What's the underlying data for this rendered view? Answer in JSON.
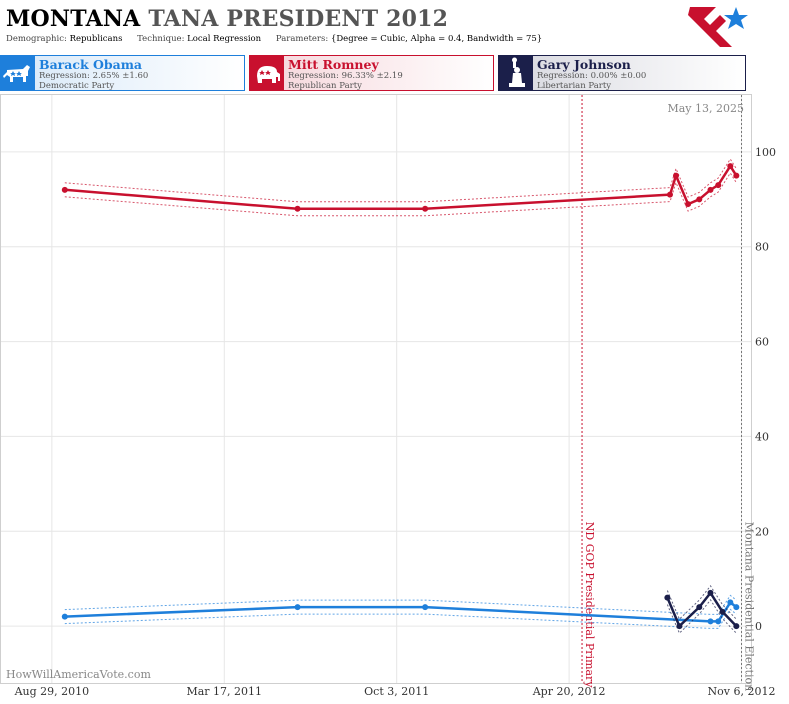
{
  "header": {
    "title_state": "MONTANA",
    "title_rest": "TANA PRESIDENT 2012",
    "demographic_label": "Demographic:",
    "demographic": "Republicans",
    "technique_label": "Technique:",
    "technique": "Local Regression",
    "parameters_label": "Parameters:",
    "parameters": "{Degree = Cubic, Alpha = 0.4, Bandwidth = 75}"
  },
  "candidates": [
    {
      "name": "Barack Obama",
      "regression": "Regression: 2.65% ±1.60",
      "party": "Democratic Party",
      "color": "#1e7fdb",
      "icon": "donkey-icon"
    },
    {
      "name": "Mitt Romney",
      "regression": "Regression: 96.33% ±2.19",
      "party": "Republican Party",
      "color": "#c8102e",
      "icon": "elephant-icon"
    },
    {
      "name": "Gary Johnson",
      "regression": "Regression: 0.00% ±0.00",
      "party": "Libertarian Party",
      "color": "#1b1f4a",
      "icon": "statue-of-liberty-icon"
    }
  ],
  "chart_data": {
    "type": "line",
    "date_stamp": "May 13, 2025",
    "watermark": "HowWillAmericaVote.com",
    "xlim": [
      "2010-07-01",
      "2012-11-17"
    ],
    "ylim": [
      -12,
      112
    ],
    "y_ticks": [
      0,
      20,
      40,
      60,
      80,
      100
    ],
    "x_ticks": [
      {
        "date": "2010-08-29",
        "label": "Aug 29, 2010"
      },
      {
        "date": "2011-03-17",
        "label": "Mar 17, 2011"
      },
      {
        "date": "2011-10-03",
        "label": "Oct 3, 2011"
      },
      {
        "date": "2012-04-20",
        "label": "Apr 20, 2012"
      },
      {
        "date": "2012-11-06",
        "label": "Nov 6, 2012"
      }
    ],
    "gridlines": true,
    "annotations": [
      {
        "date": "2012-05-05",
        "label": "ND GOP Presidential Primary",
        "color": "#c8102e"
      },
      {
        "date": "2012-11-06",
        "label": "Montana Presidential Election",
        "color": "#777777"
      }
    ],
    "series": [
      {
        "name": "Mitt Romney",
        "color": "#c8102e",
        "points": [
          {
            "date": "2010-09-13",
            "value": 92
          },
          {
            "date": "2011-06-10",
            "value": 88
          },
          {
            "date": "2011-11-05",
            "value": 88
          },
          {
            "date": "2012-08-15",
            "value": 91
          },
          {
            "date": "2012-08-22",
            "value": 95
          },
          {
            "date": "2012-09-05",
            "value": 89
          },
          {
            "date": "2012-09-18",
            "value": 90
          },
          {
            "date": "2012-10-01",
            "value": 92
          },
          {
            "date": "2012-10-10",
            "value": 93
          },
          {
            "date": "2012-10-24",
            "value": 97
          },
          {
            "date": "2012-10-31",
            "value": 95
          }
        ]
      },
      {
        "name": "Barack Obama",
        "color": "#1e7fdb",
        "points": [
          {
            "date": "2010-09-13",
            "value": 2
          },
          {
            "date": "2011-06-10",
            "value": 4
          },
          {
            "date": "2011-11-05",
            "value": 4
          },
          {
            "date": "2012-10-01",
            "value": 1
          },
          {
            "date": "2012-10-10",
            "value": 1
          },
          {
            "date": "2012-10-24",
            "value": 5
          },
          {
            "date": "2012-10-31",
            "value": 4
          }
        ]
      },
      {
        "name": "Gary Johnson",
        "color": "#1b1f4a",
        "points": [
          {
            "date": "2012-08-12",
            "value": 6
          },
          {
            "date": "2012-08-26",
            "value": 0
          },
          {
            "date": "2012-09-18",
            "value": 4
          },
          {
            "date": "2012-10-01",
            "value": 7
          },
          {
            "date": "2012-10-15",
            "value": 3
          },
          {
            "date": "2012-10-31",
            "value": 0
          }
        ]
      }
    ]
  }
}
